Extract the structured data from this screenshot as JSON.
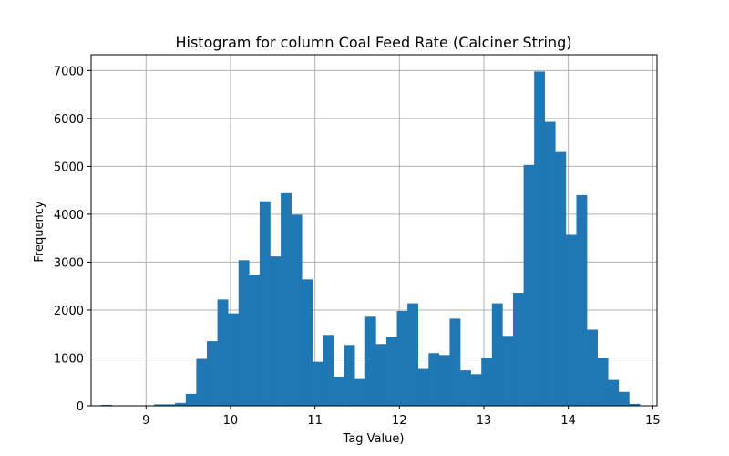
{
  "chart_data": {
    "type": "bar",
    "title": "Histogram for column Coal Feed Rate (Calciner String)",
    "xlabel": "Tag Value)",
    "ylabel": "Frequency",
    "xlim": [
      8.35,
      15.05
    ],
    "ylim": [
      0,
      7330
    ],
    "x_ticks": [
      9,
      10,
      11,
      12,
      13,
      14,
      15
    ],
    "y_ticks": [
      0,
      1000,
      2000,
      3000,
      4000,
      5000,
      6000,
      7000
    ],
    "grid": true,
    "bar_color": "#1f77b4",
    "bin_start": 8.47,
    "bin_width": 0.125,
    "values": [
      20,
      0,
      0,
      0,
      0,
      30,
      30,
      60,
      250,
      980,
      1350,
      2220,
      1930,
      3040,
      2740,
      4270,
      3120,
      4440,
      3990,
      2640,
      920,
      1480,
      610,
      1270,
      560,
      1860,
      1290,
      1440,
      1980,
      2140,
      770,
      1100,
      1060,
      1820,
      740,
      660,
      1000,
      2140,
      1460,
      2360,
      5030,
      6980,
      5930,
      5300,
      3570,
      4400,
      1590,
      1000,
      540,
      290,
      40
    ]
  }
}
